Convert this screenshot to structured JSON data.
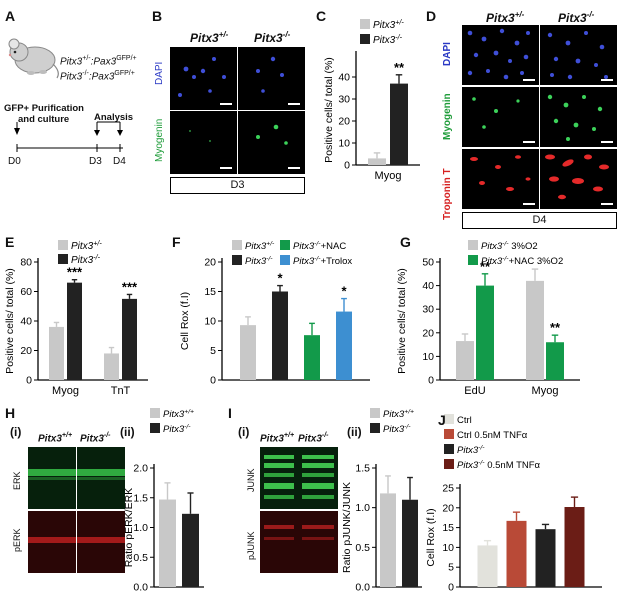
{
  "panels": {
    "A": {
      "label": "A",
      "genotype1": "Pitx3",
      "sup1": "+/-",
      "geno1b": ":Pax3",
      "sup1b": "GFP/+",
      "genotype2": "Pitx3",
      "sup2": "-/-",
      "geno2b": ":Pax3",
      "sup2b": "GFP/+",
      "step1": "GFP+ Purification",
      "step1b": "and culture",
      "analysis": "Analysis",
      "d0": "D0",
      "d3": "D3",
      "d4": "D4"
    },
    "B": {
      "label": "B",
      "col1": "Pitx3",
      "col1sup": "+/-",
      "col2": "Pitx3",
      "col2sup": "-/-",
      "row1": "DAPI",
      "row2": "Myogenin",
      "day": "D3"
    },
    "D": {
      "label": "D",
      "col1": "Pitx3",
      "col1sup": "+/-",
      "col2": "Pitx3",
      "col2sup": "-/-",
      "row1": "DAPI",
      "row2": "Myogenin",
      "row3": "Troponin T",
      "day": "D4"
    },
    "H": {
      "label": "H",
      "sub1": "(i)",
      "sub2": "(ii)",
      "col1": "Pitx3",
      "col1sup": "+/+",
      "col2": "Pitx3",
      "col2sup": "-/-",
      "row1": "ERK",
      "row2": "pERK"
    },
    "I": {
      "label": "I",
      "sub1": "(i)",
      "sub2": "(ii)",
      "col1": "Pitx3",
      "col1sup": "+/+",
      "col2": "Pitx3",
      "col2sup": "-/-",
      "row1": "JUNK",
      "row2": "pJUNK"
    },
    "J": {
      "label": "J"
    }
  },
  "colors": {
    "light_gray": "#c8c8c8",
    "dark": "#222222",
    "green": "#129a4a",
    "blue": "#3d8fd1",
    "ctrl_light": "#e2e2dc",
    "ctrl_red": "#b94a37",
    "dark_red": "#6b1d16",
    "dapi_blue": "#3f4fd8",
    "myog_green": "#3cd25a",
    "tnt_red": "#e52a2a"
  },
  "chart_data": [
    {
      "panel": "C",
      "label": "C",
      "type": "bar",
      "categories": [
        "Myog"
      ],
      "series": [
        {
          "name": "Pitx3+/-",
          "values": [
            3
          ]
        },
        {
          "name": "Pitx3-/-",
          "values": [
            37
          ]
        }
      ],
      "errors": [
        [
          2.5
        ],
        [
          4
        ]
      ],
      "annotations": [
        "**"
      ],
      "ylabel": "Positive cells/ total  (%)",
      "yticks": [
        0,
        10,
        20,
        30,
        40
      ],
      "ylim": [
        0,
        50
      ],
      "legend": "top"
    },
    {
      "panel": "E",
      "label": "E",
      "type": "bar",
      "categories": [
        "Myog",
        "TnT"
      ],
      "series": [
        {
          "name": "Pitx3+/-",
          "values": [
            36,
            18
          ]
        },
        {
          "name": "Pitx3-/-",
          "values": [
            66,
            55
          ]
        }
      ],
      "errors": [
        [
          3,
          4
        ],
        [
          2,
          3
        ]
      ],
      "annotations": [
        "***",
        "***"
      ],
      "ylabel": "Positive cells/ total  (%)",
      "yticks": [
        0,
        20,
        40,
        60,
        80
      ],
      "ylim": [
        0,
        80
      ],
      "legend": "top"
    },
    {
      "panel": "F",
      "label": "F",
      "type": "bar",
      "categories": [
        ""
      ],
      "series": [
        {
          "name": "Pitx3+/-",
          "values": [
            9.3
          ]
        },
        {
          "name": "Pitx3-/-",
          "values": [
            15
          ]
        },
        {
          "name": "Pitx3-/-+NAC",
          "values": [
            7.6
          ]
        },
        {
          "name": "Pitx3-/-+Trolox",
          "values": [
            11.6
          ]
        }
      ],
      "errors": [
        [
          1.4
        ],
        [
          1.0
        ],
        [
          2.0
        ],
        [
          2.2
        ]
      ],
      "annotations": [
        "",
        "*",
        "",
        "*"
      ],
      "ylabel": "Cell Rox (f.I)",
      "yticks": [
        0,
        5,
        10,
        15,
        20
      ],
      "ylim": [
        0,
        20
      ],
      "legend": "top"
    },
    {
      "panel": "G",
      "label": "G",
      "type": "bar",
      "categories": [
        "EdU",
        "Myog"
      ],
      "series": [
        {
          "name": "Pitx3-/- 3%O2",
          "values": [
            16.5,
            42
          ]
        },
        {
          "name": "Pitx3-/-+NAC 3%O2",
          "values": [
            40,
            16
          ]
        }
      ],
      "errors": [
        [
          3,
          5
        ],
        [
          5,
          3
        ]
      ],
      "annotations": [
        "**",
        "**"
      ],
      "ylabel": "Positive cells/ total  (%)",
      "yticks": [
        0,
        10,
        20,
        30,
        40,
        50
      ],
      "ylim": [
        0,
        50
      ],
      "legend": "top"
    },
    {
      "panel": "H",
      "label": "(ii)",
      "type": "bar",
      "categories": [
        ""
      ],
      "series": [
        {
          "name": "Pitx3+/+",
          "values": [
            1.47
          ]
        },
        {
          "name": "Pitx3-/-",
          "values": [
            1.23
          ]
        }
      ],
      "errors": [
        [
          0.28
        ],
        [
          0.35
        ]
      ],
      "ylabel": "Ratio pERK/ERK",
      "yticks": [
        0.0,
        0.5,
        1.0,
        1.5,
        2.0
      ],
      "ylim": [
        0,
        2.0
      ],
      "legend": "top"
    },
    {
      "panel": "I",
      "label": "(ii)",
      "type": "bar",
      "categories": [
        ""
      ],
      "series": [
        {
          "name": "Pitx3+/+",
          "values": [
            1.18
          ]
        },
        {
          "name": "Pitx3-/-",
          "values": [
            1.1
          ]
        }
      ],
      "errors": [
        [
          0.22
        ],
        [
          0.28
        ]
      ],
      "ylabel": "Ratio pJUNK/JUNK",
      "yticks": [
        0.0,
        0.5,
        1.0,
        1.5
      ],
      "ylim": [
        0,
        1.5
      ],
      "legend": "top"
    },
    {
      "panel": "J",
      "label": "J",
      "type": "bar",
      "categories": [
        ""
      ],
      "series": [
        {
          "name": "Ctrl",
          "values": [
            10.5
          ]
        },
        {
          "name": "Ctrl 0.5nM TNFα",
          "values": [
            16.7
          ]
        },
        {
          "name": "Pitx3-/-",
          "values": [
            14.6
          ]
        },
        {
          "name": "Pitx3-/- 0.5nM TNFα",
          "values": [
            20.2
          ]
        }
      ],
      "errors": [
        [
          1.2
        ],
        [
          2.2
        ],
        [
          1.2
        ],
        [
          2.5
        ]
      ],
      "ylabel": "Cell Rox (f.I)",
      "yticks": [
        0,
        5,
        10,
        15,
        20,
        25
      ],
      "ylim": [
        0,
        25
      ],
      "legend": "top"
    }
  ]
}
